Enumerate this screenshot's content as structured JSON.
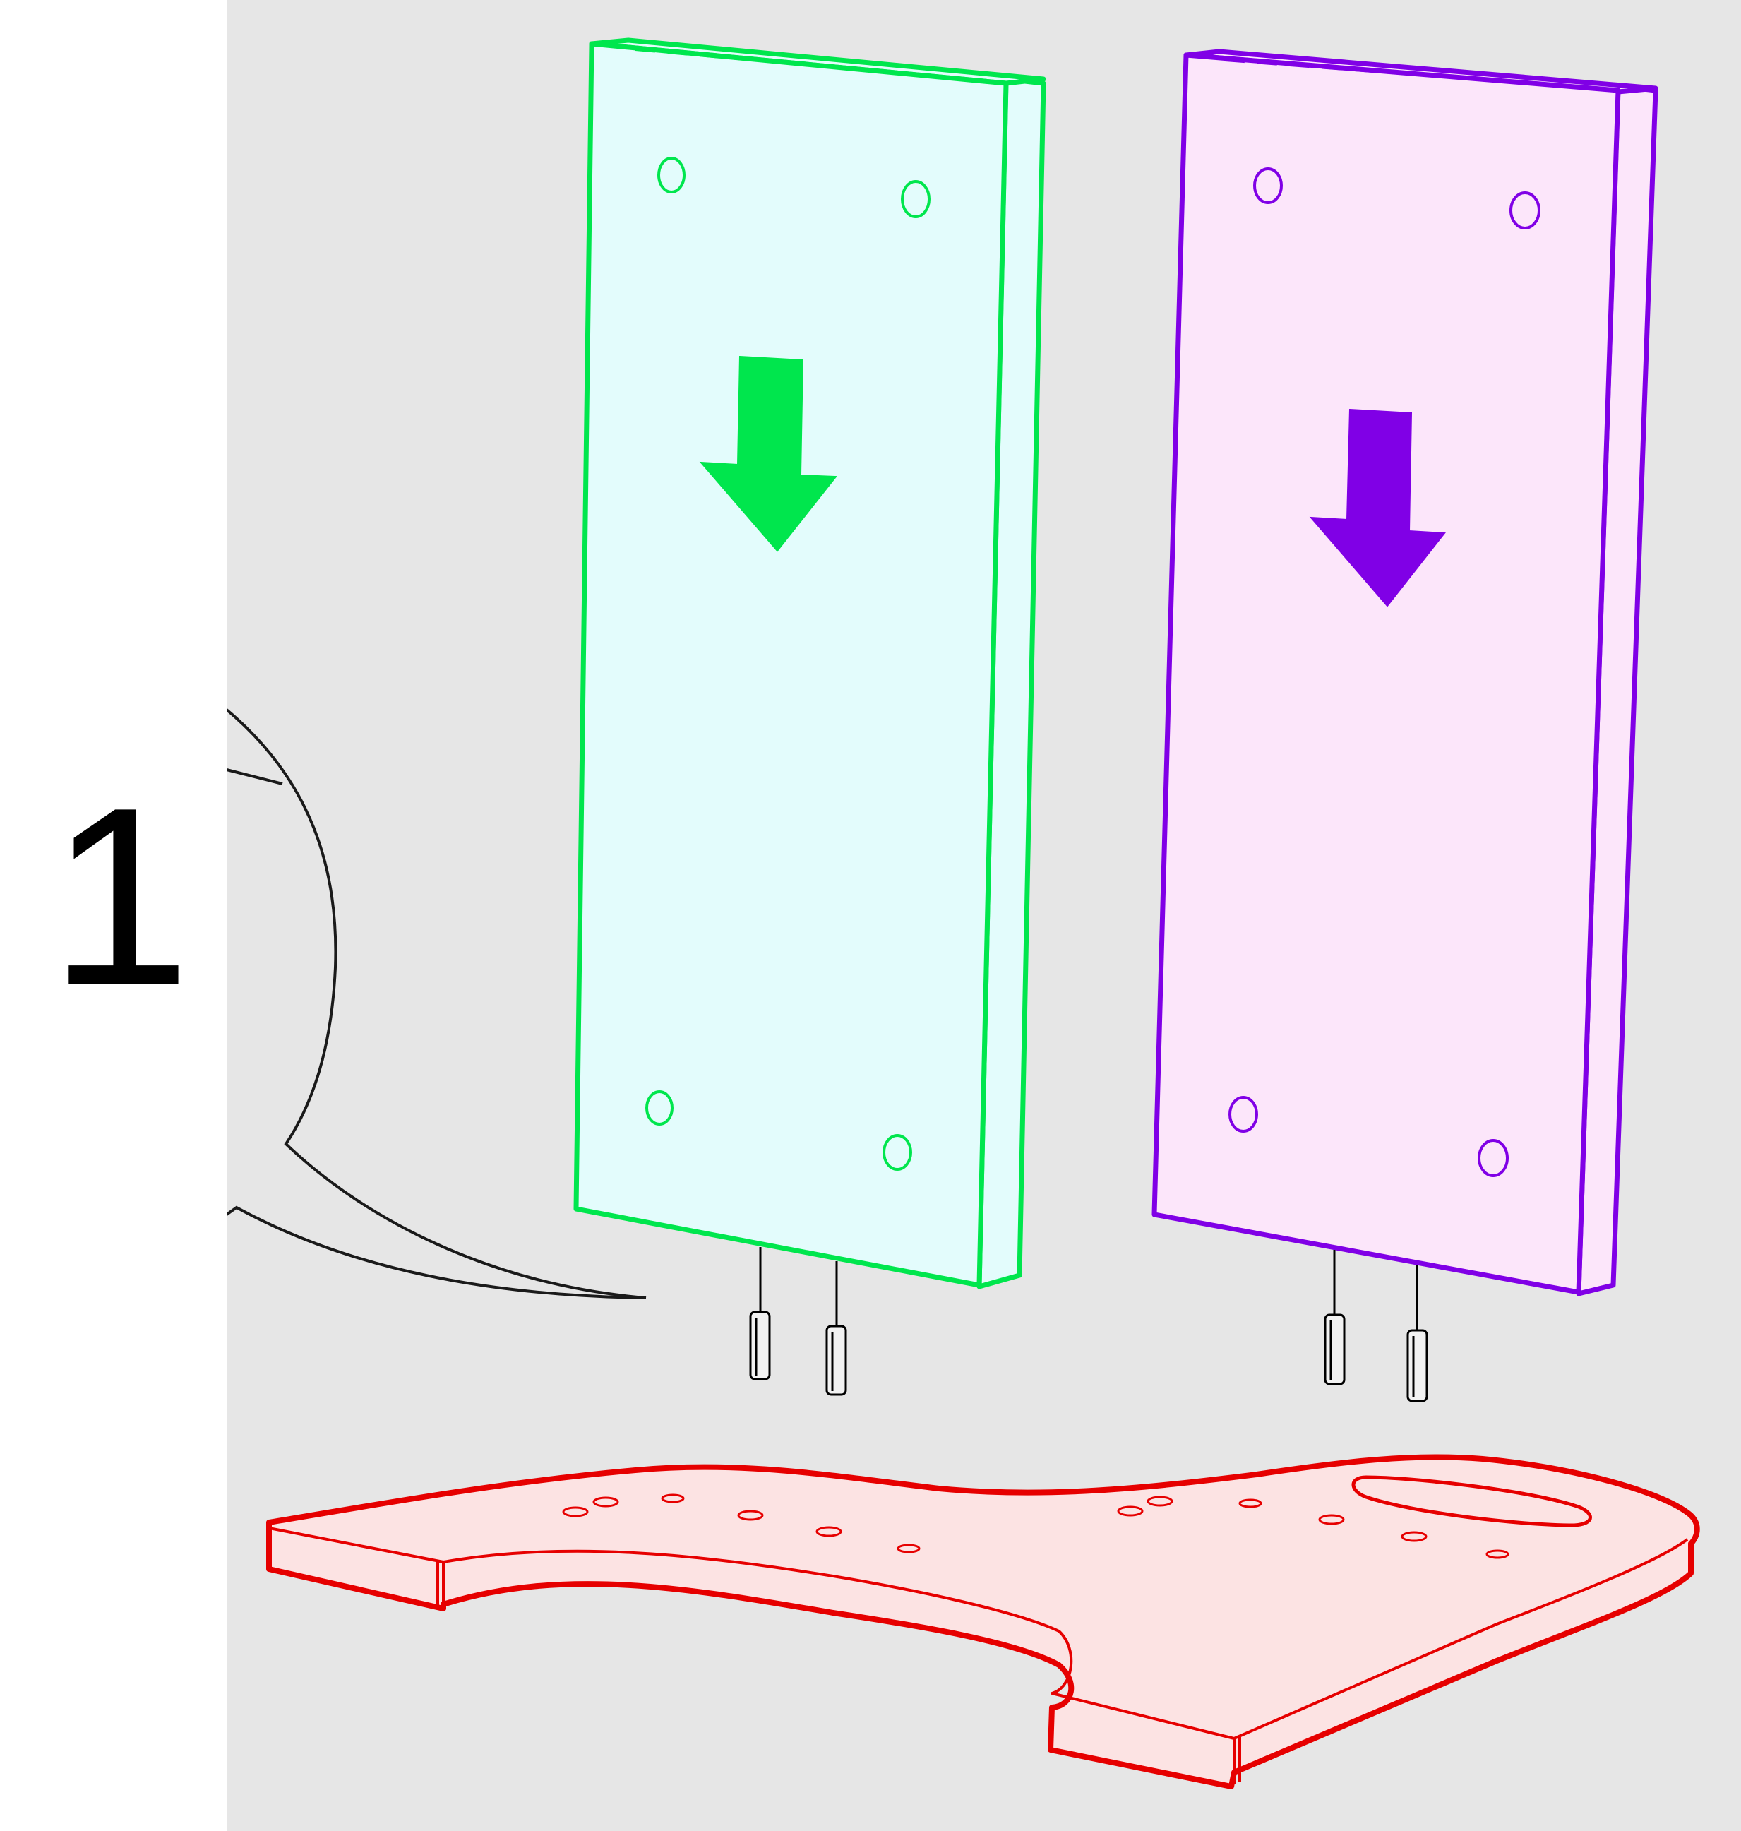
{
  "step": {
    "number": "1"
  },
  "colors": {
    "background": "#e6e6e6",
    "panel_left_stroke": "#00e64d",
    "panel_left_fill": "#e3fcfc",
    "panel_right_stroke": "#8000e6",
    "panel_right_fill": "#fce6fa",
    "base_stroke": "#e60000",
    "base_fill": "#fce3e3",
    "dowel_stroke": "#000000"
  },
  "parts": {
    "left_panel": "side-panel-green",
    "right_panel": "side-panel-purple",
    "base": "base-board-red",
    "dowels": "wooden-dowel",
    "arrows": "arrow-down-icon"
  }
}
